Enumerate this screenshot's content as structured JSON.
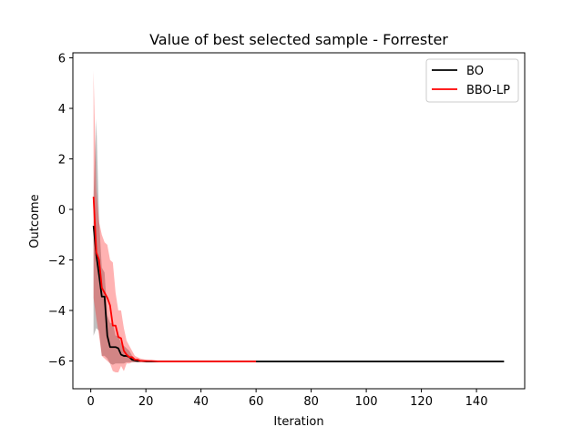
{
  "chart_data": {
    "type": "line",
    "title": "Value of best selected sample - Forrester",
    "xlabel": "Iteration",
    "ylabel": "Outcome",
    "xlim": [
      -6.5,
      157.5
    ],
    "ylim": [
      -7.1,
      6.2
    ],
    "xticks": [
      0,
      20,
      40,
      60,
      80,
      100,
      120,
      140
    ],
    "yticks": [
      -6,
      -4,
      -2,
      0,
      2,
      4,
      6
    ],
    "grid": false,
    "legend_position": "top-right",
    "series": [
      {
        "name": "BO",
        "color": "#000000",
        "band_color": "#808080",
        "x": [
          1,
          2,
          3,
          4,
          5,
          6,
          7,
          8,
          9,
          10,
          11,
          12,
          13,
          14,
          15,
          16,
          17,
          18,
          20,
          22,
          25,
          150
        ],
        "mean": [
          -0.65,
          -1.8,
          -2.6,
          -3.45,
          -3.45,
          -5.0,
          -5.45,
          -5.45,
          -5.45,
          -5.5,
          -5.75,
          -5.8,
          -5.8,
          -5.85,
          -5.95,
          -5.98,
          -6.0,
          -6.0,
          -6.02,
          -6.02,
          -6.02,
          -6.02
        ],
        "upper": [
          0.5,
          3.6,
          -0.4,
          -2.3,
          -2.5,
          -4.2,
          -4.5,
          -4.5,
          -5.0,
          -5.0,
          -5.3,
          -5.4,
          -5.5,
          -5.6,
          -5.8,
          -5.9,
          -5.95,
          -5.98,
          -6.0,
          -6.0,
          -6.0,
          -6.0
        ],
        "lower": [
          -5.0,
          -4.7,
          -4.8,
          -5.8,
          -5.8,
          -5.9,
          -6.1,
          -6.15,
          -6.1,
          -6.1,
          -6.1,
          -6.1,
          -6.05,
          -6.05,
          -6.05,
          -6.05,
          -6.05,
          -6.04,
          -6.04,
          -6.04,
          -6.04,
          -6.04
        ]
      },
      {
        "name": "BBO-LP",
        "color": "#ff0000",
        "band_color": "#ff0000",
        "x": [
          1,
          2,
          3,
          4,
          5,
          6,
          7,
          8,
          9,
          10,
          11,
          12,
          13,
          14,
          15,
          16,
          17,
          18,
          20,
          22,
          25,
          60
        ],
        "mean": [
          0.5,
          -1.7,
          -2.0,
          -3.1,
          -3.3,
          -3.5,
          -3.8,
          -4.6,
          -4.6,
          -5.05,
          -5.1,
          -5.6,
          -5.75,
          -5.85,
          -5.85,
          -5.95,
          -5.95,
          -6.0,
          -6.0,
          -6.0,
          -6.02,
          -6.02
        ],
        "upper": [
          5.5,
          0.8,
          -0.5,
          -1.0,
          -1.3,
          -1.4,
          -2.0,
          -2.1,
          -3.3,
          -4.0,
          -4.0,
          -4.7,
          -5.2,
          -5.4,
          -5.6,
          -5.8,
          -5.85,
          -5.9,
          -5.95,
          -5.98,
          -6.0,
          -6.0
        ],
        "lower": [
          -3.5,
          -4.3,
          -5.0,
          -5.8,
          -5.9,
          -6.0,
          -6.1,
          -6.4,
          -6.45,
          -6.45,
          -6.2,
          -6.4,
          -6.1,
          -6.1,
          -6.05,
          -6.05,
          -6.05,
          -6.04,
          -6.04,
          -6.04,
          -6.04,
          -6.04
        ]
      }
    ]
  }
}
